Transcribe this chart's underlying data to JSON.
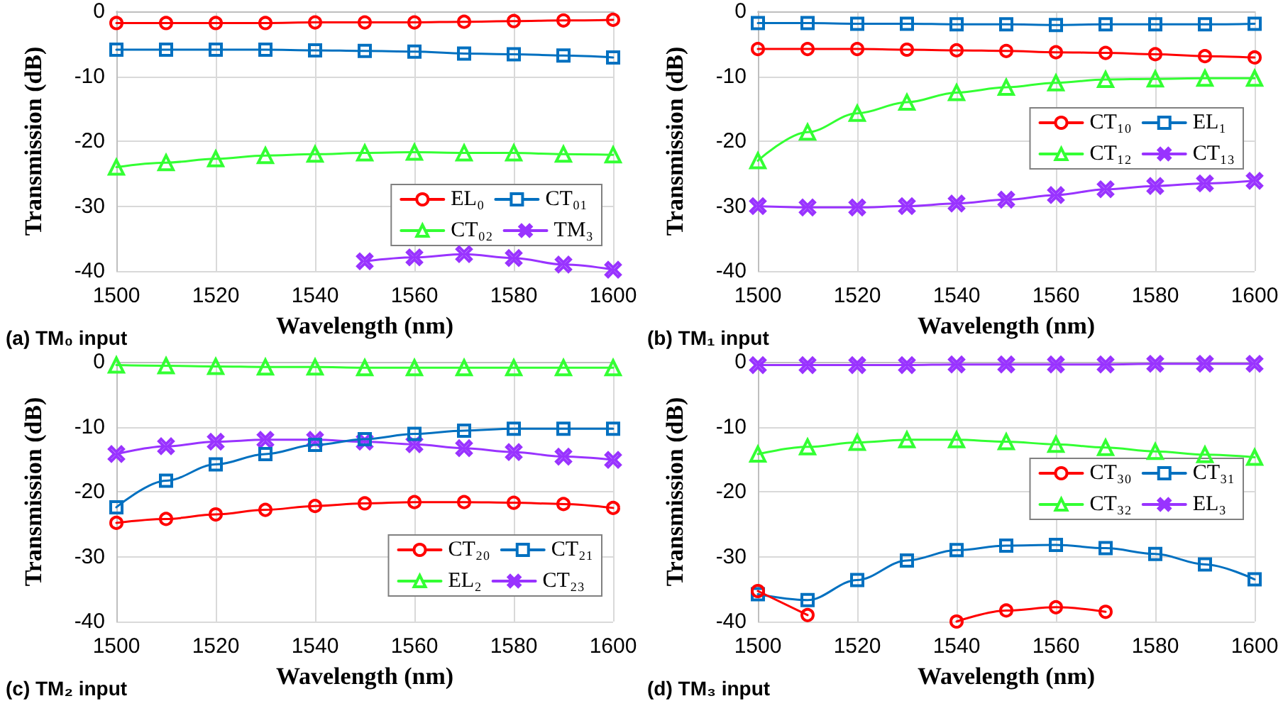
{
  "chart_data": [
    {
      "type": "line",
      "xlabel": "Wavelength (nm)",
      "ylabel": "Transmission (dB)",
      "annotations": [
        "(a) TM₀ input"
      ],
      "x": [
        1500,
        1510,
        1520,
        1530,
        1540,
        1550,
        1560,
        1570,
        1580,
        1590,
        1600
      ],
      "xlim": [
        1500,
        1600
      ],
      "xticks": [
        1500,
        1520,
        1540,
        1560,
        1580,
        1600
      ],
      "ylim": [
        -40,
        0
      ],
      "yticks": [
        -40,
        -30,
        -20,
        -10,
        0
      ],
      "grid": true,
      "legend": "bottom right",
      "line_style": "solid",
      "series": [
        {
          "name": "EL₀",
          "color": "#ff0000",
          "marker": "circle",
          "values": [
            -1.8,
            -1.8,
            -1.8,
            -1.8,
            -1.7,
            -1.7,
            -1.7,
            -1.6,
            -1.5,
            -1.4,
            -1.3
          ]
        },
        {
          "name": "CT₀₁",
          "color": "#0070c0",
          "marker": "square",
          "values": [
            -5.9,
            -5.9,
            -5.9,
            -5.9,
            -6,
            -6.1,
            -6.2,
            -6.5,
            -6.6,
            -6.8,
            -7.1
          ]
        },
        {
          "name": "CT₀₂",
          "color": "#33ff33",
          "marker": "triangle",
          "values": [
            -24,
            -23.3,
            -22.7,
            -22.2,
            -22,
            -21.8,
            -21.7,
            -21.8,
            -21.8,
            -22,
            -22.1
          ]
        },
        {
          "name": "TM₃",
          "color": "#9933ff",
          "marker": "cross",
          "values": [
            null,
            null,
            null,
            null,
            null,
            -38.5,
            -37.9,
            -37.4,
            -38,
            -39,
            -39.8
          ]
        }
      ]
    },
    {
      "type": "line",
      "xlabel": "Wavelength (nm)",
      "ylabel": "Transmission (dB)",
      "annotations": [
        "(b) TM₁ input"
      ],
      "x": [
        1500,
        1510,
        1520,
        1530,
        1540,
        1550,
        1560,
        1570,
        1580,
        1590,
        1600
      ],
      "xlim": [
        1500,
        1600
      ],
      "xticks": [
        1500,
        1520,
        1540,
        1560,
        1580,
        1600
      ],
      "ylim": [
        -40,
        0
      ],
      "yticks": [
        -40,
        -30,
        -20,
        -10,
        0
      ],
      "grid": true,
      "legend": "right",
      "line_style": "solid",
      "series": [
        {
          "name": "CT₁₀",
          "color": "#ff0000",
          "marker": "circle",
          "values": [
            -5.8,
            -5.8,
            -5.8,
            -5.9,
            -6,
            -6.1,
            -6.3,
            -6.4,
            -6.6,
            -6.9,
            -7.1
          ]
        },
        {
          "name": "EL₁",
          "color": "#0070c0",
          "marker": "square",
          "values": [
            -1.8,
            -1.8,
            -1.9,
            -1.9,
            -2,
            -2,
            -2.1,
            -2,
            -2,
            -2,
            -1.9
          ]
        },
        {
          "name": "CT₁₂",
          "color": "#33ff33",
          "marker": "triangle",
          "values": [
            -23,
            -18.6,
            -15.7,
            -14,
            -12.5,
            -11.7,
            -11,
            -10.5,
            -10.4,
            -10.3,
            -10.3
          ]
        },
        {
          "name": "CT₁₃",
          "color": "#9933ff",
          "marker": "cross",
          "values": [
            -30,
            -30.2,
            -30.2,
            -30,
            -29.6,
            -29,
            -28.3,
            -27.4,
            -26.9,
            -26.5,
            -26.1
          ]
        }
      ]
    },
    {
      "type": "line",
      "xlabel": "Wavelength (nm)",
      "ylabel": "Transmission (dB)",
      "annotations": [
        "(c) TM₂ input"
      ],
      "x": [
        1500,
        1510,
        1520,
        1530,
        1540,
        1550,
        1560,
        1570,
        1580,
        1590,
        1600
      ],
      "xlim": [
        1500,
        1600
      ],
      "xticks": [
        1500,
        1520,
        1540,
        1560,
        1580,
        1600
      ],
      "ylim": [
        -40,
        0
      ],
      "yticks": [
        -40,
        -30,
        -20,
        -10,
        0
      ],
      "grid": true,
      "legend": "bottom right",
      "line_style": "solid",
      "series": [
        {
          "name": "CT₂₀",
          "color": "#ff0000",
          "marker": "circle",
          "values": [
            -24.8,
            -24.2,
            -23.5,
            -22.8,
            -22.2,
            -21.8,
            -21.6,
            -21.6,
            -21.7,
            -21.9,
            -22.5
          ]
        },
        {
          "name": "CT₂₁",
          "color": "#0070c0",
          "marker": "square",
          "values": [
            -22.4,
            -18.3,
            -15.8,
            -14.2,
            -12.8,
            -11.9,
            -11.1,
            -10.6,
            -10.3,
            -10.3,
            -10.3
          ]
        },
        {
          "name": "EL₂",
          "color": "#33ff33",
          "marker": "triangle",
          "values": [
            -0.5,
            -0.6,
            -0.7,
            -0.8,
            -0.8,
            -0.9,
            -0.9,
            -0.9,
            -0.9,
            -0.9,
            -0.9
          ]
        },
        {
          "name": "CT₂₃",
          "color": "#9933ff",
          "marker": "cross",
          "values": [
            -14.2,
            -13,
            -12.3,
            -12,
            -12,
            -12.3,
            -12.7,
            -13.3,
            -13.9,
            -14.6,
            -15.1
          ]
        }
      ]
    },
    {
      "type": "line",
      "xlabel": "Wavelength (nm)",
      "ylabel": "Transmission (dB)",
      "annotations": [
        "(d) TM₃ input"
      ],
      "x": [
        1500,
        1510,
        1520,
        1530,
        1540,
        1550,
        1560,
        1570,
        1580,
        1590,
        1600
      ],
      "xlim": [
        1500,
        1600
      ],
      "xticks": [
        1500,
        1520,
        1540,
        1560,
        1580,
        1600
      ],
      "ylim": [
        -40,
        0
      ],
      "yticks": [
        -40,
        -30,
        -20,
        -10,
        0
      ],
      "grid": true,
      "legend": "right",
      "line_style": "solid",
      "series": [
        {
          "name": "CT₃₀",
          "color": "#ff0000",
          "marker": "circle",
          "values": [
            -35.3,
            -39,
            null,
            null,
            -40,
            -38.3,
            -37.8,
            -38.5,
            null,
            null,
            null
          ]
        },
        {
          "name": "CT₃₁",
          "color": "#0070c0",
          "marker": "square",
          "values": [
            -35.8,
            -36.7,
            -33.6,
            -30.6,
            -29,
            -28.3,
            -28.2,
            -28.7,
            -29.6,
            -31.2,
            -33.5
          ]
        },
        {
          "name": "CT₃₂",
          "color": "#33ff33",
          "marker": "triangle",
          "values": [
            -14.2,
            -13.1,
            -12.4,
            -12,
            -12,
            -12.3,
            -12.7,
            -13.2,
            -13.8,
            -14.3,
            -14.7
          ]
        },
        {
          "name": "EL₃",
          "color": "#9933ff",
          "marker": "cross",
          "values": [
            -0.5,
            -0.5,
            -0.5,
            -0.5,
            -0.4,
            -0.4,
            -0.4,
            -0.4,
            -0.3,
            -0.3,
            -0.3
          ]
        }
      ]
    }
  ]
}
